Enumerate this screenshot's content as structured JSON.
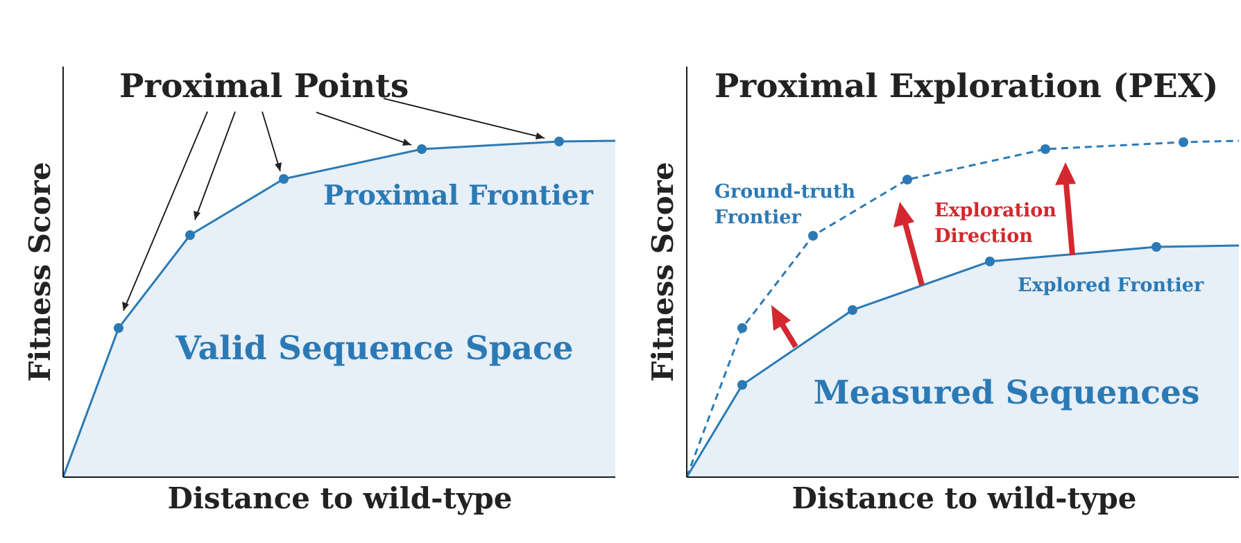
{
  "left_panel": {
    "title": "Proximal Points",
    "y_axis_label": "Fitness Score",
    "x_axis_label": "Distance to wild-type",
    "frontier_label": "Proximal Frontier",
    "region_label": "Valid Sequence Space"
  },
  "right_panel": {
    "title": "Proximal Exploration (PEX)",
    "y_axis_label": "Fitness Score",
    "x_axis_label": "Distance to wild-type",
    "ground_truth_label_line1": "Ground-truth",
    "ground_truth_label_line2": "Frontier",
    "direction_label_line1": "Exploration",
    "direction_label_line2": "Direction",
    "explored_label": "Explored Frontier",
    "region_label": "Measured Sequences"
  },
  "colors": {
    "frontier_blue": "#2b7ab5",
    "region_fill": "#e7eff7",
    "arrow_red": "#d3282f",
    "text_dark": "#222222"
  }
}
